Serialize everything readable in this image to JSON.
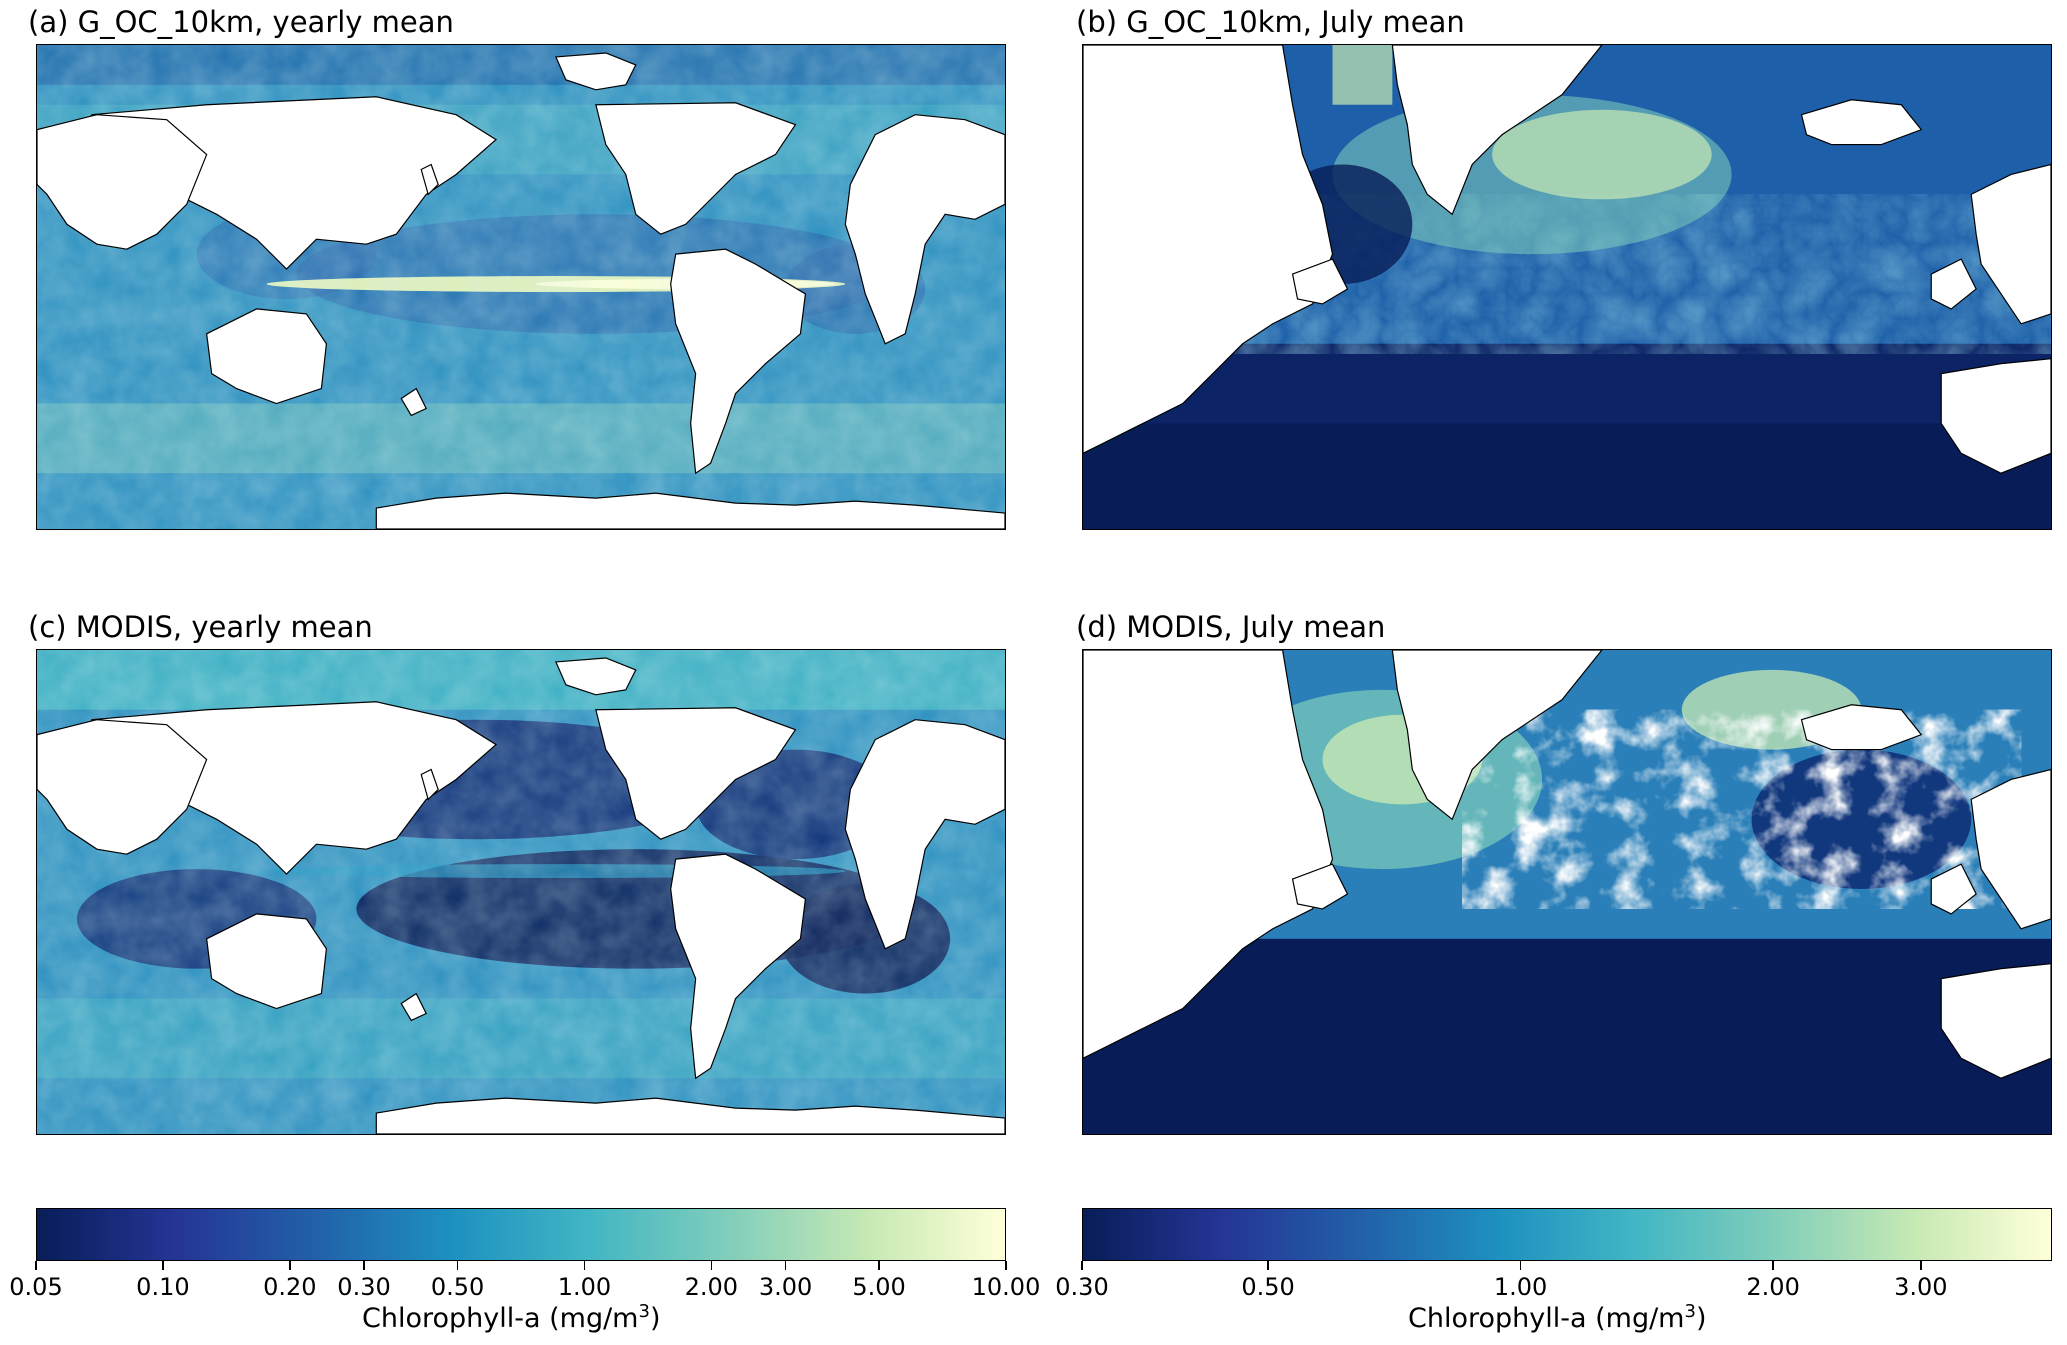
{
  "panels": {
    "a": {
      "title": "(a) G_OC_10km, yearly mean"
    },
    "b": {
      "title": "(b) G_OC_10km, July mean"
    },
    "c": {
      "title": "(c) MODIS, yearly mean"
    },
    "d": {
      "title": "(d) MODIS, July mean"
    }
  },
  "colorbars": {
    "left": {
      "label_prefix": "Chlorophyll-a (mg/m",
      "label_sup": "3",
      "label_suffix": ")",
      "min": 0.05,
      "max": 10.0,
      "scale": "log",
      "ticks": [
        {
          "v": 0.05,
          "t": "0.05"
        },
        {
          "v": 0.1,
          "t": "0.10"
        },
        {
          "v": 0.2,
          "t": "0.20"
        },
        {
          "v": 0.3,
          "t": "0.30"
        },
        {
          "v": 0.5,
          "t": "0.50"
        },
        {
          "v": 1.0,
          "t": "1.00"
        },
        {
          "v": 2.0,
          "t": "2.00"
        },
        {
          "v": 3.0,
          "t": "3.00"
        },
        {
          "v": 5.0,
          "t": "5.00"
        },
        {
          "v": 10.0,
          "t": "10.00"
        }
      ]
    },
    "right": {
      "label_prefix": "Chlorophyll-a (mg/m",
      "label_sup": "3",
      "label_suffix": ")",
      "min": 0.3,
      "max": 4.3,
      "scale": "log",
      "ticks": [
        {
          "v": 0.3,
          "t": "0.30"
        },
        {
          "v": 0.5,
          "t": "0.50"
        },
        {
          "v": 1.0,
          "t": "1.00"
        },
        {
          "v": 2.0,
          "t": "2.00"
        },
        {
          "v": 3.0,
          "t": "3.00"
        }
      ]
    }
  },
  "colormap": "YlGnBu_r",
  "colors": {
    "low": "#081d58",
    "c2": "#253494",
    "c3": "#225ea8",
    "c4": "#1d91c0",
    "c5": "#41b6c4",
    "c6": "#7fcdbb",
    "c7": "#c7e9b4",
    "high": "#ffffd9",
    "land": "#ffffff",
    "coast": "#000000"
  }
}
